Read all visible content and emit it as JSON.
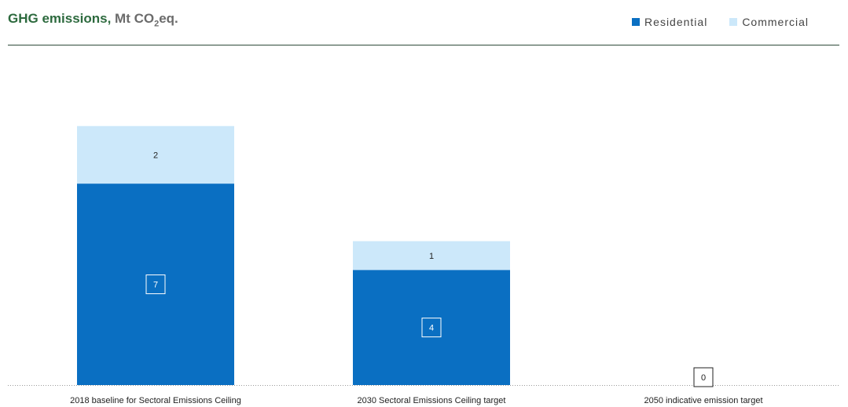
{
  "header": {
    "title_main": "GHG emissions, ",
    "title_unit_pre": "Mt CO",
    "title_unit_sub": "2",
    "title_unit_post": "eq."
  },
  "colors": {
    "residential": "#0a6fc2",
    "commercial": "#cce8fa",
    "title": "#2d6a3e"
  },
  "chart_data": {
    "type": "bar",
    "stacked": true,
    "categories": [
      "2018 baseline for Sectoral Emissions Ceiling",
      "2030 Sectoral Emissions Ceiling target",
      "2050 indicative emission target"
    ],
    "series": [
      {
        "name": "Residential",
        "values": [
          7,
          4,
          0
        ],
        "color": "#0a6fc2",
        "labels": [
          "7",
          "4",
          "0"
        ]
      },
      {
        "name": "Commercial",
        "values": [
          2,
          1,
          0
        ],
        "color": "#cce8fa",
        "labels": [
          "2",
          "1",
          ""
        ]
      }
    ],
    "title": "GHG emissions, Mt CO2eq.",
    "xlabel": "",
    "ylabel": "",
    "ylim": [
      0,
      11.2
    ],
    "grid": false,
    "legend": "top-right"
  }
}
